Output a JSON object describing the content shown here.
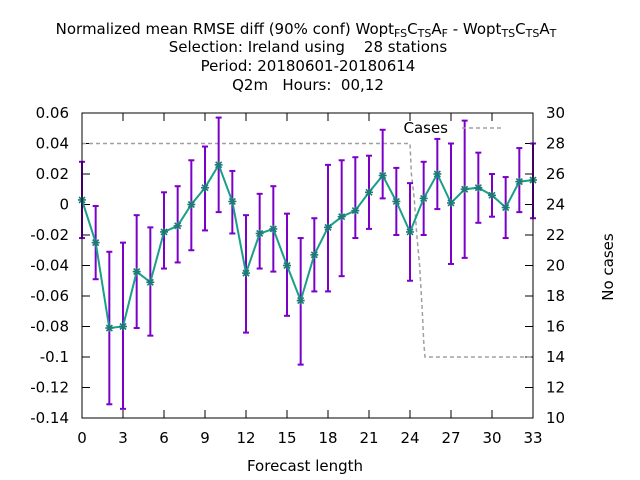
{
  "chart_data": {
    "type": "line",
    "title": {
      "line1": [
        {
          "t": "Normalized mean RMSE diff (90% conf) Wopt"
        },
        {
          "t": "F",
          "sub": true
        },
        {
          "t": "S",
          "sub": true
        },
        {
          "t": "C"
        },
        {
          "t": "T",
          "sub": true
        },
        {
          "t": "S",
          "sub": true
        },
        {
          "t": "A"
        },
        {
          "t": "F",
          "sub": true
        },
        {
          "t": " - Wopt"
        },
        {
          "t": "T",
          "sub": true
        },
        {
          "t": "S",
          "sub": true
        },
        {
          "t": "C"
        },
        {
          "t": "T",
          "sub": true
        },
        {
          "t": "S",
          "sub": true
        },
        {
          "t": "A"
        },
        {
          "t": "T",
          "sub": true
        }
      ],
      "line2": "Selection: Ireland using    28 stations",
      "line3": "Period: 20180601-20180614",
      "line4": "Q2m   Hours:  00,12"
    },
    "xlabel": "Forecast length",
    "ylabel_right": "No cases",
    "xlim": [
      0,
      33
    ],
    "ylim": [
      -0.14,
      0.06
    ],
    "y2lim": [
      10,
      30
    ],
    "x_ticks": [
      "0",
      "3",
      "6",
      "9",
      "12",
      "15",
      "18",
      "21",
      "24",
      "27",
      "30",
      "33"
    ],
    "y_ticks": [
      "0.06",
      "0.04",
      "0.02",
      "0",
      "-0.02",
      "-0.04",
      "-0.06",
      "-0.08",
      "-0.1",
      "-0.12",
      "-0.14"
    ],
    "y2_ticks": [
      "30",
      "28",
      "26",
      "24",
      "22",
      "20",
      "18",
      "16",
      "14",
      "12",
      "10"
    ],
    "grid": false,
    "legend": {
      "position": "top-right",
      "entries": [
        "Cases"
      ]
    },
    "colors": {
      "line": "#1a9e8a",
      "marker": "#1e7a78",
      "errorbar": "#7b00c8",
      "cases": "#a0a0a0"
    },
    "series": [
      {
        "x": [
          0,
          1,
          2,
          3,
          4,
          5,
          6,
          7,
          8,
          9,
          10,
          11,
          12,
          13,
          14,
          15,
          16,
          17,
          18,
          19,
          20,
          21,
          22,
          23,
          24,
          25,
          26,
          27,
          28,
          29,
          30,
          31,
          32,
          33
        ],
        "y": [
          0.003,
          -0.025,
          -0.081,
          -0.08,
          -0.044,
          -0.051,
          -0.018,
          -0.014,
          0.0,
          0.011,
          0.026,
          0.002,
          -0.045,
          -0.019,
          -0.016,
          -0.04,
          -0.063,
          -0.033,
          -0.015,
          -0.008,
          -0.004,
          0.008,
          0.019,
          0.002,
          -0.018,
          0.004,
          0.02,
          0.001,
          0.01,
          0.011,
          0.006,
          -0.002,
          0.015,
          0.016
        ],
        "lower": [
          -0.022,
          -0.049,
          -0.131,
          -0.134,
          -0.081,
          -0.086,
          -0.042,
          -0.038,
          -0.03,
          -0.017,
          -0.005,
          -0.019,
          -0.084,
          -0.042,
          -0.044,
          -0.073,
          -0.105,
          -0.057,
          -0.057,
          -0.047,
          -0.022,
          -0.016,
          0.004,
          -0.02,
          -0.05,
          -0.02,
          -0.003,
          -0.039,
          -0.035,
          -0.012,
          -0.008,
          -0.022,
          -0.005,
          -0.009
        ],
        "upper": [
          0.028,
          -0.001,
          -0.031,
          -0.025,
          -0.007,
          -0.015,
          0.008,
          0.012,
          0.029,
          0.038,
          0.057,
          0.022,
          -0.007,
          0.007,
          0.012,
          -0.006,
          -0.022,
          -0.009,
          0.026,
          0.029,
          0.031,
          0.032,
          0.049,
          0.024,
          0.014,
          0.028,
          0.043,
          0.04,
          0.055,
          0.034,
          0.02,
          0.018,
          0.037,
          0.04
        ]
      },
      {
        "name": "Cases",
        "axis": "y2",
        "x": [
          0,
          24,
          24.1,
          24.3,
          24.5,
          24.7,
          24.9,
          25,
          25.1,
          33
        ],
        "y": [
          28,
          28,
          26,
          24.5,
          22,
          20,
          17,
          15,
          14,
          14
        ]
      }
    ]
  }
}
